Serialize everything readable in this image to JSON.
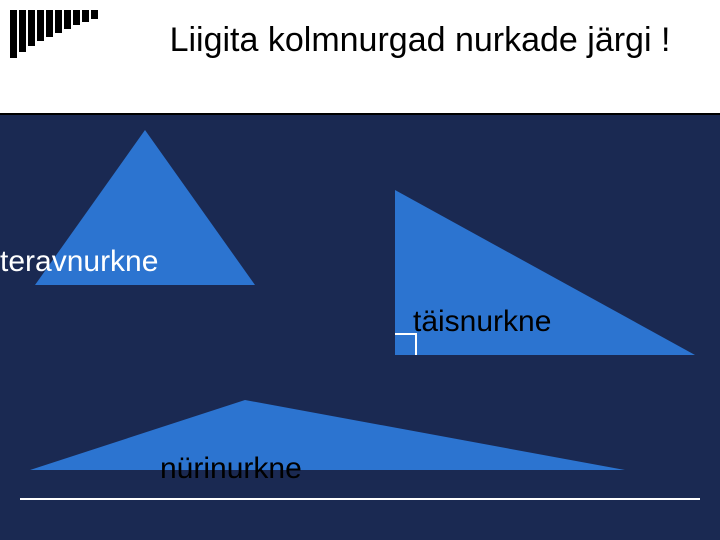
{
  "slide": {
    "title": "Liigita kolmnurgad nurkade järgi !",
    "background_color": "#1a2952",
    "header_bg": "#ffffff",
    "triangle_color": "#2c74d0",
    "bars": {
      "count": 10,
      "heights": [
        48,
        42,
        36,
        31,
        27,
        23,
        19,
        15,
        12,
        9
      ],
      "width": 7,
      "color": "#000000"
    },
    "triangles": {
      "acute": {
        "label": "teravnurkne",
        "label_color": "#ffffff",
        "type": "isoceles-acute"
      },
      "right": {
        "label": "täisnurkne",
        "label_color": "#000000",
        "type": "right-angle"
      },
      "obtuse": {
        "label": "nürinurkne",
        "label_color": "#000000",
        "type": "obtuse"
      }
    },
    "font": {
      "title_size": 34,
      "label_size": 30,
      "family": "Arial, sans-serif"
    }
  }
}
